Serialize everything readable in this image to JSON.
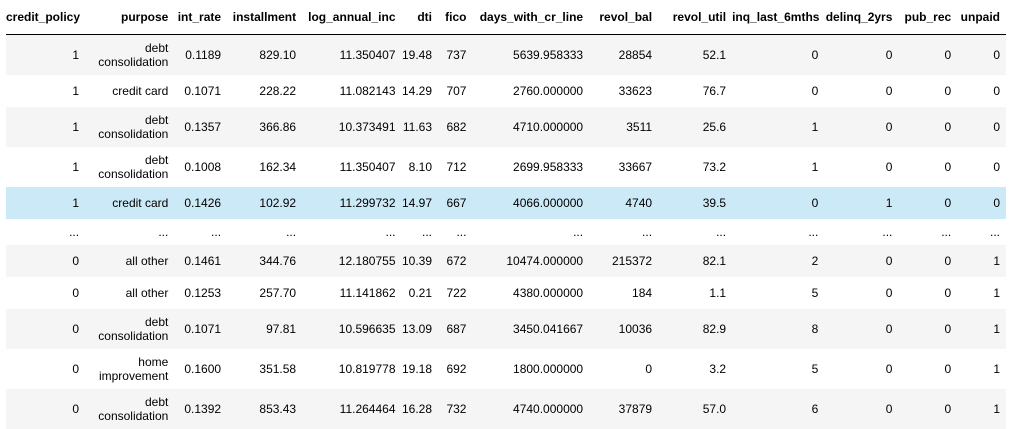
{
  "table": {
    "columns": [
      "credit_policy",
      "purpose",
      "int_rate",
      "installment",
      "log_annual_inc",
      "dti",
      "fico",
      "days_with_cr_line",
      "revol_bal",
      "revol_util",
      "inq_last_6mths",
      "delinq_2yrs",
      "pub_rec",
      "unpaid"
    ],
    "rows": [
      [
        "1",
        "debt consolidation",
        "0.1189",
        "829.10",
        "11.350407",
        "19.48",
        "737",
        "5639.958333",
        "28854",
        "52.1",
        "0",
        "0",
        "0",
        "0"
      ],
      [
        "1",
        "credit card",
        "0.1071",
        "228.22",
        "11.082143",
        "14.29",
        "707",
        "2760.000000",
        "33623",
        "76.7",
        "0",
        "0",
        "0",
        "0"
      ],
      [
        "1",
        "debt consolidation",
        "0.1357",
        "366.86",
        "10.373491",
        "11.63",
        "682",
        "4710.000000",
        "3511",
        "25.6",
        "1",
        "0",
        "0",
        "0"
      ],
      [
        "1",
        "debt consolidation",
        "0.1008",
        "162.34",
        "11.350407",
        "8.10",
        "712",
        "2699.958333",
        "33667",
        "73.2",
        "1",
        "0",
        "0",
        "0"
      ],
      [
        "1",
        "credit card",
        "0.1426",
        "102.92",
        "11.299732",
        "14.97",
        "667",
        "4066.000000",
        "4740",
        "39.5",
        "0",
        "1",
        "0",
        "0"
      ],
      [
        "...",
        "...",
        "...",
        "...",
        "...",
        "...",
        "...",
        "...",
        "...",
        "...",
        "...",
        "...",
        "...",
        "..."
      ],
      [
        "0",
        "all other",
        "0.1461",
        "344.76",
        "12.180755",
        "10.39",
        "672",
        "10474.000000",
        "215372",
        "82.1",
        "2",
        "0",
        "0",
        "1"
      ],
      [
        "0",
        "all other",
        "0.1253",
        "257.70",
        "11.141862",
        "0.21",
        "722",
        "4380.000000",
        "184",
        "1.1",
        "5",
        "0",
        "0",
        "1"
      ],
      [
        "0",
        "debt consolidation",
        "0.1071",
        "97.81",
        "10.596635",
        "13.09",
        "687",
        "3450.041667",
        "10036",
        "82.9",
        "8",
        "0",
        "0",
        "1"
      ],
      [
        "0",
        "home improvement",
        "0.1600",
        "351.58",
        "10.819778",
        "19.18",
        "692",
        "1800.000000",
        "0",
        "3.2",
        "5",
        "0",
        "0",
        "1"
      ],
      [
        "0",
        "debt consolidation",
        "0.1392",
        "853.43",
        "11.264464",
        "16.28",
        "732",
        "4740.000000",
        "37879",
        "57.0",
        "6",
        "0",
        "0",
        "1"
      ]
    ]
  }
}
